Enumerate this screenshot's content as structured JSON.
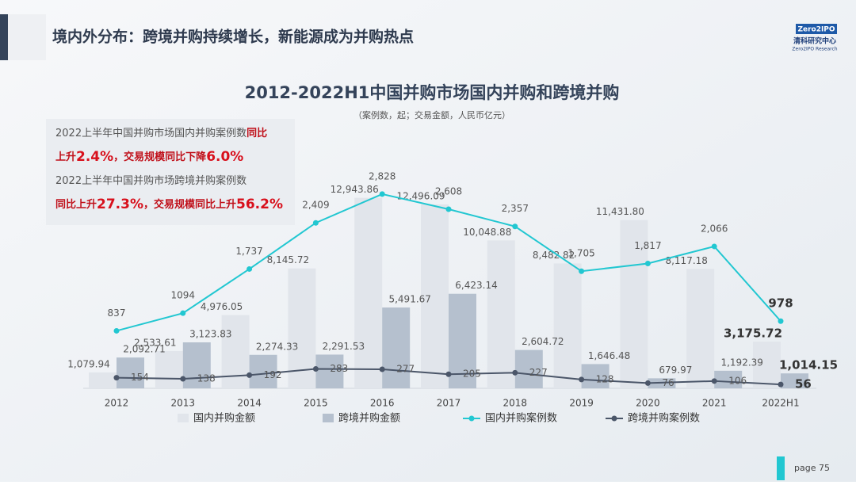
{
  "header": {
    "title": "境内外分布：跨境并购持续增长，新能源成为并购热点"
  },
  "logo": {
    "mark": "Zero2IPO",
    "name": "清科研究中心",
    "sub": "Zero2IPO Research"
  },
  "callout": {
    "lines": [
      [
        {
          "text": "2022上半年中国并购市场国内并购案例数",
          "style": "normal"
        },
        {
          "text": "同比",
          "style": "red"
        }
      ],
      [
        {
          "text": "上升",
          "style": "red"
        },
        {
          "text": "2.4%",
          "style": "big"
        },
        {
          "text": "，交易规模同比下降",
          "style": "red"
        },
        {
          "text": "6.0%",
          "style": "big"
        }
      ],
      [
        {
          "text": "2022上半年中国并购市场跨境并购案例数",
          "style": "normal"
        }
      ],
      [
        {
          "text": "同比上升",
          "style": "red"
        },
        {
          "text": "27.3%",
          "style": "big"
        },
        {
          "text": "，交易规模同比上升",
          "style": "red"
        },
        {
          "text": "56.2%",
          "style": "big"
        }
      ]
    ]
  },
  "chart_data": {
    "type": "bar-line",
    "title": "2012-2022H1中国并购市场国内并购和跨境并购",
    "subtitle": "（案例数，起；交易金额，人民币亿元）",
    "categories": [
      "2012",
      "2013",
      "2014",
      "2015",
      "2016",
      "2017",
      "2018",
      "2019",
      "2020",
      "2021",
      "2022H1"
    ],
    "ylim": [
      0,
      14000
    ],
    "y2lim": [
      0,
      3000
    ],
    "series": [
      {
        "name": "国内并购金额",
        "type": "bar",
        "color": "#e1e5eb",
        "values": [
          1079.94,
          2533.61,
          4976.05,
          8145.72,
          12943.86,
          12496.09,
          10048.88,
          8482.82,
          11431.8,
          8117.18,
          3175.72
        ],
        "value_labels": [
          "1,079.94",
          "2,533.61",
          "4,976.05",
          "8,145.72",
          "12,943.86",
          "12,496.09",
          "10,048.88",
          "8,482.82",
          "11,431.80",
          "8,117.18",
          "3,175.72"
        ]
      },
      {
        "name": "跨境并购金额",
        "type": "bar",
        "color": "#b5c0ce",
        "values": [
          2092.71,
          3123.83,
          2274.33,
          2291.53,
          5491.67,
          6423.14,
          2604.72,
          1646.48,
          679.97,
          1192.39,
          1014.15
        ],
        "value_labels": [
          "2,092.71",
          "3,123.83",
          "2,274.33",
          "2,291.53",
          "5,491.67",
          "6,423.14",
          "2,604.72",
          "1,646.48",
          "679.97",
          "1,192.39",
          "1,014.15"
        ]
      },
      {
        "name": "国内并购案例数",
        "type": "line",
        "axis": "y2",
        "color": "#22c7d1",
        "values": [
          837,
          1094,
          1737,
          2409,
          2828,
          2608,
          2357,
          1705,
          1817,
          2066,
          978
        ],
        "value_labels": [
          "837",
          "1094",
          "1,737",
          "2,409",
          "2,828",
          "2,608",
          "2,357",
          "1,705",
          "1,817",
          "2,066",
          "978"
        ]
      },
      {
        "name": "跨境并购案例数",
        "type": "line",
        "axis": "y2",
        "color": "#4b5669",
        "values": [
          154,
          138,
          192,
          283,
          277,
          205,
          227,
          128,
          76,
          106,
          56
        ]
      }
    ]
  },
  "footer": {
    "page": "page 75"
  }
}
